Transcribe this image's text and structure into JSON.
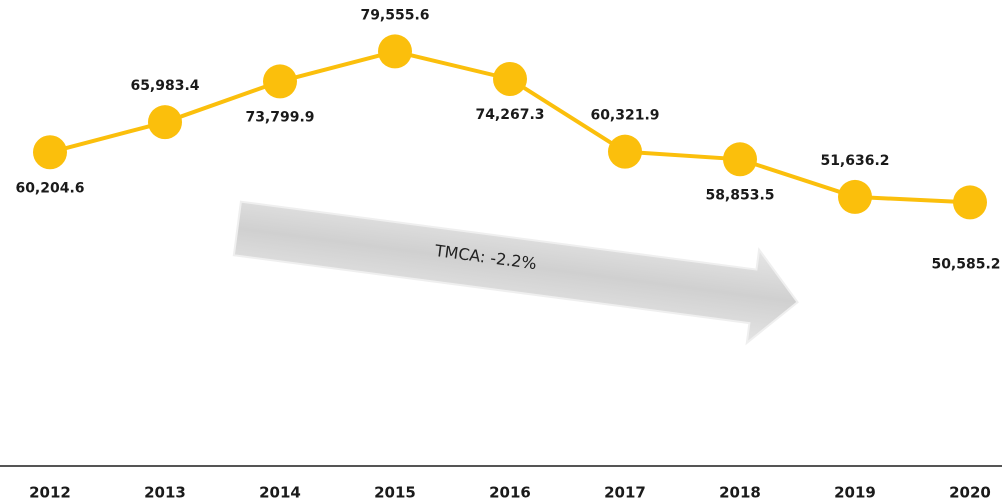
{
  "chart_data": {
    "type": "line",
    "categories": [
      "2012",
      "2013",
      "2014",
      "2015",
      "2016",
      "2017",
      "2018",
      "2019",
      "2020"
    ],
    "values": [
      60204.6,
      65983.4,
      73799.9,
      79555.6,
      74267.3,
      60321.9,
      58853.5,
      51636.2,
      50585.2
    ],
    "value_labels": [
      "60,204.6",
      "65,983.4",
      "73,799.9",
      "79,555.6",
      "74,267.3",
      "60,321.9",
      "58,853.5",
      "51,636.2",
      "50,585.2"
    ],
    "color": "#fbbf0c",
    "ylim": [
      0,
      90000
    ],
    "annotation": "TMCA: -2.2%"
  }
}
